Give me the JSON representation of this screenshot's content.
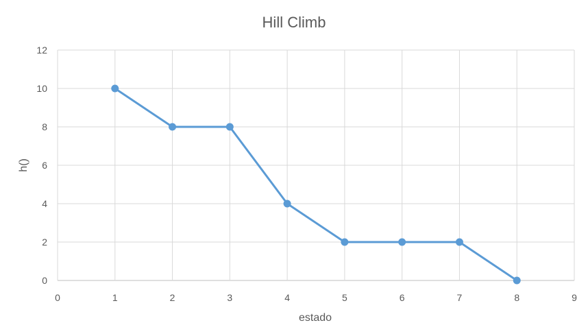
{
  "chart_data": {
    "type": "scatter",
    "title": "Hill Climb",
    "xlabel": "estado",
    "ylabel": "h()",
    "xlim": [
      0,
      9
    ],
    "ylim": [
      0,
      12
    ],
    "xticks": [
      0,
      1,
      2,
      3,
      4,
      5,
      6,
      7,
      8,
      9
    ],
    "yticks": [
      0,
      2,
      4,
      6,
      8,
      10,
      12
    ],
    "grid": true,
    "legend": "none",
    "series": [
      {
        "x": [
          1,
          2,
          3,
          4,
          5,
          6,
          7,
          8
        ],
        "y": [
          10,
          8,
          8,
          4,
          2,
          2,
          2,
          0
        ],
        "color": "#5b9bd5",
        "mode": "lines+markers"
      }
    ]
  }
}
